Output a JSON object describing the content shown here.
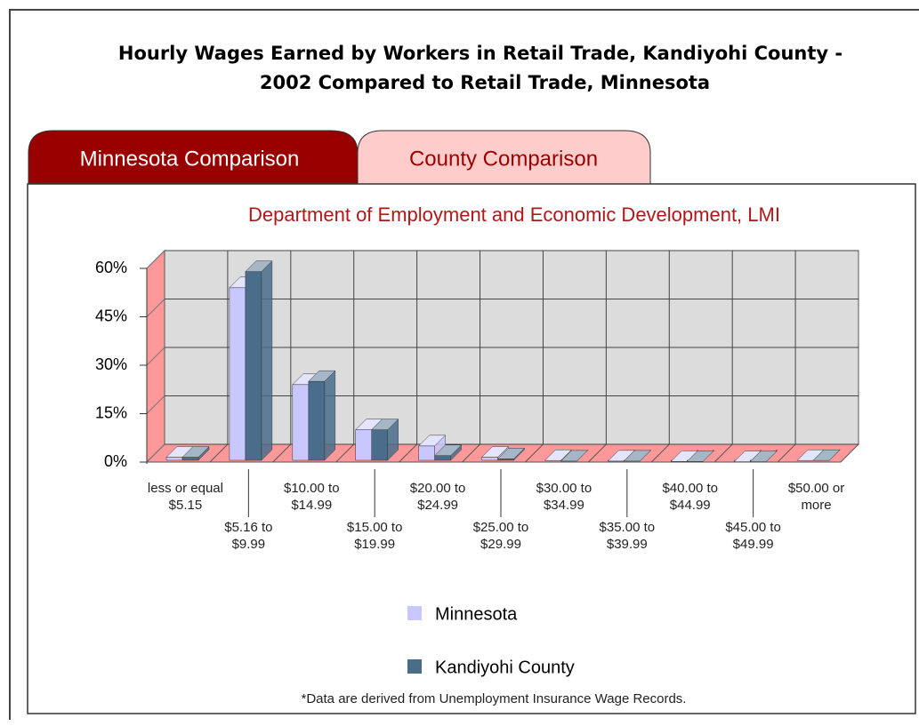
{
  "page": {
    "heading": [
      "Hourly Wages Earned by Workers in Retail Trade, Kandiyohi County -",
      "2002 Compared to Retail Trade, Minnesota"
    ],
    "tabs": [
      "Minnesota Comparison",
      "County Comparison"
    ]
  },
  "chart_data": {
    "type": "bar3d",
    "title": "Department of Employment and Economic Development, LMI",
    "categories": [
      "less or equal $5.15",
      "$5.16 to $9.99",
      "$10.00 to $14.99",
      "$15.00 to $19.99",
      "$20.00 to $24.99",
      "$25.00 to $29.99",
      "$30.00 to $34.99",
      "$35.00 to $39.99",
      "$40.00 to $44.99",
      "$45.00 to $49.99",
      "$50.00 or more"
    ],
    "series": [
      {
        "name": "Minnesota",
        "color": "#c8c8ff",
        "values": [
          1.5,
          54,
          24,
          10,
          5,
          1.5,
          0.5,
          0.3,
          0.2,
          0.1,
          0.5
        ]
      },
      {
        "name": "Kandiyohi County",
        "color": "#4a6d8c",
        "values": [
          1.5,
          59,
          25,
          10,
          2,
          1,
          0.3,
          0.3,
          0.2,
          0.1,
          0.5
        ]
      }
    ],
    "ylim": [
      0,
      60
    ],
    "yticks": [
      {
        "value": 0,
        "label": "0%"
      },
      {
        "value": 15,
        "label": "15%"
      },
      {
        "value": 30,
        "label": "30%"
      },
      {
        "value": 45,
        "label": "45%"
      },
      {
        "value": 60,
        "label": "60%"
      }
    ],
    "grid": true,
    "note": "*Data are derived from Unemployment Insurance Wage Records."
  }
}
